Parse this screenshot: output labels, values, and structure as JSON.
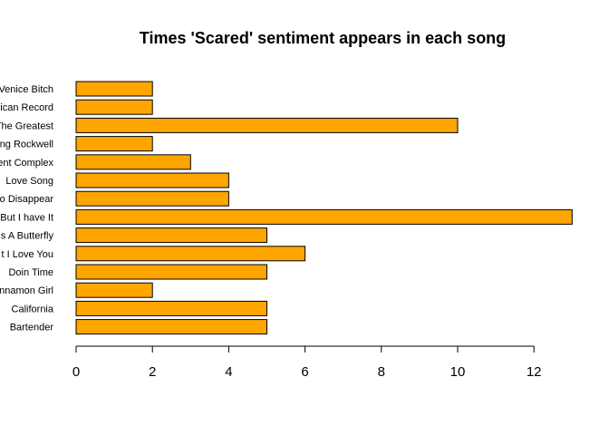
{
  "chart_data": {
    "type": "bar",
    "orientation": "horizontal",
    "title": "Times 'Scared' sentiment appears in each song",
    "xlabel": "",
    "ylabel": "",
    "xlim": [
      0,
      13
    ],
    "x_ticks": [
      0,
      2,
      4,
      6,
      8,
      10,
      12
    ],
    "grid": false,
    "bar_color": "#FFA500",
    "bar_border_color": "#000000",
    "categories": [
      "Venice Bitch",
      "rican Record",
      "The Greatest",
      "ng Rockwell",
      "ent Complex",
      "Love Song",
      "to Disappear",
      "But I have It",
      "s A Butterfly",
      "t I Love You",
      "Doin Time",
      "innamon Girl",
      "California",
      "Bartender"
    ],
    "values": [
      2,
      2,
      10,
      2,
      3,
      4,
      4,
      13,
      5,
      6,
      5,
      2,
      5,
      5
    ]
  }
}
